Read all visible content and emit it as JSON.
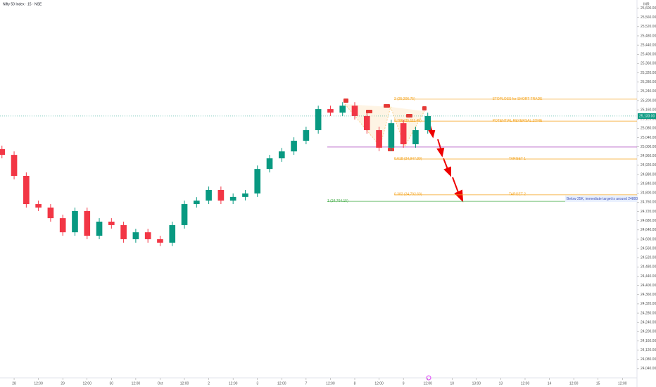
{
  "chart_data": {
    "type": "candlestick",
    "title": "Nifty 50 Index · 15 · NSE",
    "currency": "INR",
    "x": [
      -0.5,
      0,
      0.5,
      1,
      1.5,
      2,
      2.5,
      3,
      3.5,
      4,
      4.5,
      5,
      5.5,
      6,
      6.5,
      7,
      7.5,
      8,
      8.5,
      9,
      9.5,
      10,
      10.5,
      11,
      11.5,
      12,
      12.5,
      13,
      13.5,
      14,
      14.5,
      15,
      15.5,
      16,
      16.5,
      17
    ],
    "open": [
      24990,
      24965,
      24874,
      24752,
      24737,
      24691,
      24630,
      24722,
      24615,
      24676,
      24661,
      24600,
      24630,
      24600,
      24585,
      24661,
      24752,
      24767,
      24813,
      24767,
      24783,
      24798,
      24904,
      24950,
      24980,
      25026,
      25072,
      25163,
      25148,
      25178,
      25133,
      25072,
      24996,
      25102,
      25011,
      25072
    ],
    "high": [
      25005,
      24980,
      24889,
      24767,
      24752,
      24706,
      24737,
      24737,
      24691,
      24691,
      24676,
      24645,
      24645,
      24615,
      24676,
      24767,
      24782,
      24828,
      24828,
      24798,
      24813,
      24919,
      24965,
      24995,
      25041,
      25087,
      25178,
      25178,
      25193,
      25193,
      25148,
      25087,
      25117,
      25117,
      25087,
      25148
    ],
    "low": [
      24950,
      24859,
      24737,
      24722,
      24676,
      24615,
      24615,
      24600,
      24600,
      24646,
      24585,
      24585,
      24585,
      24570,
      24570,
      24646,
      24737,
      24752,
      24752,
      24752,
      24768,
      24783,
      24889,
      24935,
      24965,
      25011,
      25057,
      25133,
      25133,
      25118,
      25057,
      24981,
      24981,
      24996,
      24996,
      25057
    ],
    "close": [
      24965,
      24874,
      24752,
      24737,
      24691,
      24630,
      24722,
      24615,
      24676,
      24661,
      24600,
      24630,
      24600,
      24585,
      24661,
      24752,
      24767,
      24813,
      24767,
      24783,
      24798,
      24904,
      24950,
      24980,
      25026,
      25072,
      25163,
      25148,
      25178,
      25133,
      25072,
      24996,
      25102,
      25011,
      25072,
      25133
    ],
    "up_color": "#089981",
    "down_color": "#f23645",
    "xlim": [
      -0.58,
      25.6
    ],
    "xticks": [
      {
        "value": 0,
        "label": "28"
      },
      {
        "value": 1,
        "label": "12:00"
      },
      {
        "value": 2,
        "label": "29"
      },
      {
        "value": 3,
        "label": "12:00"
      },
      {
        "value": 4,
        "label": "30"
      },
      {
        "value": 5,
        "label": "12:00"
      },
      {
        "value": 6,
        "label": "Oct"
      },
      {
        "value": 7,
        "label": "12:00"
      },
      {
        "value": 8,
        "label": "2"
      },
      {
        "value": 9,
        "label": "12:00"
      },
      {
        "value": 10,
        "label": "3"
      },
      {
        "value": 11,
        "label": "12:00"
      },
      {
        "value": 12,
        "label": "7"
      },
      {
        "value": 13,
        "label": "12:00"
      },
      {
        "value": 14,
        "label": "8"
      },
      {
        "value": 15,
        "label": "12:00"
      },
      {
        "value": 16,
        "label": "9"
      },
      {
        "value": 17,
        "label": "12:00"
      },
      {
        "value": 18,
        "label": "10"
      },
      {
        "value": 19,
        "label": "13:00"
      },
      {
        "value": 20,
        "label": "13"
      },
      {
        "value": 21,
        "label": "12:00"
      },
      {
        "value": 22,
        "label": "14"
      },
      {
        "value": 23,
        "label": "12:00"
      },
      {
        "value": 24,
        "label": "15"
      },
      {
        "value": 25,
        "label": "12:00"
      }
    ],
    "ylim": [
      24000,
      25620
    ],
    "yticks": [
      {
        "value": 24040,
        "label": "24,040.00"
      },
      {
        "value": 24080,
        "label": "24,080.00"
      },
      {
        "value": 24120,
        "label": "24,120.00"
      },
      {
        "value": 24160,
        "label": "24,160.00"
      },
      {
        "value": 24200,
        "label": "24,200.00"
      },
      {
        "value": 24240,
        "label": "24,240.00"
      },
      {
        "value": 24280,
        "label": "24,280.00"
      },
      {
        "value": 24320,
        "label": "24,320.00"
      },
      {
        "value": 24360,
        "label": "24,360.00"
      },
      {
        "value": 24400,
        "label": "24,400.00"
      },
      {
        "value": 24440,
        "label": "24,440.00"
      },
      {
        "value": 24480,
        "label": "24,480.00"
      },
      {
        "value": 24520,
        "label": "24,520.00"
      },
      {
        "value": 24560,
        "label": "24,560.00"
      },
      {
        "value": 24600,
        "label": "24,600.00"
      },
      {
        "value": 24640,
        "label": "24,640.00"
      },
      {
        "value": 24680,
        "label": "24,680.00"
      },
      {
        "value": 24720,
        "label": "24,720.00"
      },
      {
        "value": 24760,
        "label": "24,760.00"
      },
      {
        "value": 24800,
        "label": "24,800.00"
      },
      {
        "value": 24840,
        "label": "24,840.00"
      },
      {
        "value": 24880,
        "label": "24,880.00"
      },
      {
        "value": 24920,
        "label": "24,920.00"
      },
      {
        "value": 24960,
        "label": "24,960.00"
      },
      {
        "value": 25000,
        "label": "25,000.00"
      },
      {
        "value": 25040,
        "label": "25,040.00"
      },
      {
        "value": 25080,
        "label": "25,080.00"
      },
      {
        "value": 25120,
        "label": "25,120.00"
      },
      {
        "value": 25160,
        "label": "25,160.00"
      },
      {
        "value": 25200,
        "label": "25,200.00"
      },
      {
        "value": 25240,
        "label": "25,240.00"
      },
      {
        "value": 25280,
        "label": "25,280.00"
      },
      {
        "value": 25320,
        "label": "25,320.00"
      },
      {
        "value": 25360,
        "label": "25,360.00"
      },
      {
        "value": 25400,
        "label": "25,400.00"
      },
      {
        "value": 25440,
        "label": "25,440.00"
      },
      {
        "value": 25480,
        "label": "25,480.00"
      },
      {
        "value": 25520,
        "label": "25,520.00"
      },
      {
        "value": 25560,
        "label": "25,560.00"
      },
      {
        "value": 25600,
        "label": "25,600.00"
      }
    ],
    "last_price": {
      "value": 25133,
      "label": "25,133.00"
    },
    "levels": [
      {
        "value": 25206,
        "color": "#f5a623",
        "label_left": "2 (25,206.75)",
        "label_right": "STOPLOSS for SHORT TRADE"
      },
      {
        "value": 25111,
        "color": "#f5a623",
        "label_left": "0.786 (25,111.45)",
        "label_right": "POTENTIAL REVERSAL ZONE"
      },
      {
        "value": 24999,
        "color": "#9c27b0"
      },
      {
        "value": 24947,
        "color": "#f5a623",
        "label_left": "0.618 (24,947.80)",
        "label_right": "TARGET 1"
      },
      {
        "value": 24792,
        "color": "#f5a623",
        "label_left": "0.382 (24,792.60)",
        "label_right": "TARGET 2"
      },
      {
        "value": 24764,
        "color": "#4caf50",
        "label_left": "1 (24,764.15)"
      }
    ],
    "annotation": "Below 25K, immediate target is around 24800"
  }
}
